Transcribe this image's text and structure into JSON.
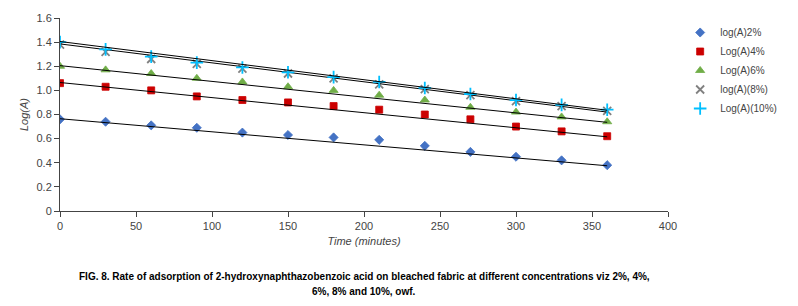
{
  "chart_data": {
    "type": "scatter",
    "xlabel": "Time (minutes)",
    "ylabel": "Log(A)",
    "xlim": [
      0,
      400
    ],
    "ylim": [
      0,
      1.6
    ],
    "xticks": [
      0,
      50,
      100,
      150,
      200,
      250,
      300,
      350,
      400
    ],
    "yticks": [
      0,
      0.2,
      0.4,
      0.6,
      0.8,
      {
        "value": 1,
        "label": "1.0"
      },
      1.2,
      1.4,
      1.6
    ],
    "legend": "upper right",
    "grid": false,
    "annotations": [
      "FIG. 8. Rate of adsorption of 2-hydroxynaphthazobenzoic acid on bleached fabric at different concentrations viz 2%, 4%,",
      "6%, 8% and 10%, owf."
    ],
    "series": [
      {
        "name": "log(A)2%",
        "color": "#4472C4",
        "marker": "diamond",
        "x": [
          0,
          30,
          60,
          90,
          120,
          150,
          180,
          210,
          240,
          270,
          300,
          330,
          360
        ],
        "values": [
          0.76,
          0.74,
          0.71,
          0.69,
          0.65,
          0.63,
          0.61,
          0.59,
          0.54,
          0.49,
          0.45,
          0.42,
          0.38
        ],
        "fit_line": {
          "x": [
            0,
            360
          ],
          "values": [
            0.765,
            0.375
          ],
          "color": "#000000"
        }
      },
      {
        "name": "Log(A)4%",
        "color": "#CC0000",
        "marker": "square",
        "x": [
          0,
          30,
          60,
          90,
          120,
          150,
          180,
          210,
          240,
          270,
          300,
          330,
          360
        ],
        "values": [
          1.06,
          1.03,
          1.0,
          0.95,
          0.92,
          0.9,
          0.87,
          0.84,
          0.8,
          0.76,
          0.7,
          0.66,
          0.62
        ],
        "fit_line": {
          "x": [
            0,
            360
          ],
          "values": [
            1.065,
            0.615
          ],
          "color": "#000000"
        }
      },
      {
        "name": "Log(A)6%",
        "color": "#70AD47",
        "marker": "triangle",
        "x": [
          0,
          30,
          60,
          90,
          120,
          150,
          180,
          210,
          240,
          270,
          300,
          330,
          360
        ],
        "values": [
          1.2,
          1.17,
          1.14,
          1.1,
          1.07,
          1.03,
          1.0,
          0.96,
          0.92,
          0.86,
          0.82,
          0.78,
          0.74
        ],
        "fit_line": {
          "x": [
            0,
            360
          ],
          "values": [
            1.205,
            0.735
          ],
          "color": "#000000"
        }
      },
      {
        "name": "log(A)(8%)",
        "color": "#808080",
        "marker": "x",
        "x": [
          0,
          30,
          60,
          90,
          120,
          150,
          180,
          210,
          240,
          270,
          300,
          330,
          360
        ],
        "values": [
          1.38,
          1.32,
          1.26,
          1.22,
          1.18,
          1.14,
          1.1,
          1.05,
          1.01,
          0.96,
          0.91,
          0.87,
          0.83
        ],
        "fit_line": {
          "x": [
            0,
            360
          ],
          "values": [
            1.385,
            0.82
          ],
          "color": "#000000"
        }
      },
      {
        "name": "Log(A)(10%)",
        "color": "#00BFFF",
        "marker": "plus",
        "x": [
          0,
          30,
          60,
          90,
          120,
          150,
          180,
          210,
          240,
          270,
          300,
          330,
          360
        ],
        "values": [
          1.4,
          1.34,
          1.28,
          1.23,
          1.19,
          1.15,
          1.11,
          1.07,
          1.02,
          0.97,
          0.92,
          0.88,
          0.84
        ],
        "fit_line": {
          "x": [
            0,
            360
          ],
          "values": [
            1.405,
            0.835
          ],
          "color": "#000000"
        }
      }
    ]
  }
}
